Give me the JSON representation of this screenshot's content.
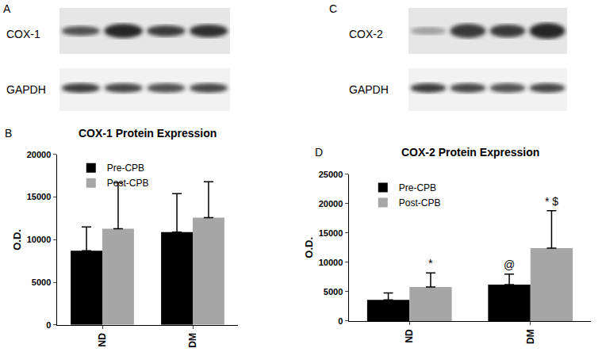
{
  "blots": [
    {
      "panel": "A",
      "labels": [
        "COX-1",
        "GAPDH"
      ]
    },
    {
      "panel": "C",
      "labels": [
        "COX-2",
        "GAPDH"
      ]
    }
  ],
  "chart_data": [
    {
      "type": "bar",
      "title": "COX-1 Protein Expression",
      "annotations": [
        {
          "text": "B"
        }
      ],
      "y_label": "O.D.",
      "categories": [
        "ND",
        "DM"
      ],
      "series": [
        {
          "name": "Pre-CPB",
          "color": "#000000",
          "values": [
            8700,
            10900
          ],
          "error": [
            2800,
            4500
          ]
        },
        {
          "name": "Post-CPB",
          "color": "#a6a6a6",
          "values": [
            11300,
            12600
          ],
          "error": [
            5400,
            4200
          ]
        }
      ],
      "ylim": [
        0,
        20000
      ],
      "yticks": [
        0,
        5000,
        10000,
        15000,
        20000
      ],
      "grid": false,
      "legend": "upper left"
    },
    {
      "type": "bar",
      "title": "COX-2 Protein Expression",
      "annotations": [
        {
          "text": "D"
        },
        {
          "text": "*",
          "category": "ND",
          "series": "Post-CPB"
        },
        {
          "text": "@",
          "category": "DM",
          "series": "Pre-CPB"
        },
        {
          "text": "* $",
          "category": "DM",
          "series": "Post-CPB"
        }
      ],
      "y_label": "O.D.",
      "categories": [
        "ND",
        "DM"
      ],
      "series": [
        {
          "name": "Pre-CPB",
          "color": "#000000",
          "values": [
            3600,
            6200
          ],
          "error": [
            1200,
            1800
          ]
        },
        {
          "name": "Post-CPB",
          "color": "#a6a6a6",
          "values": [
            5800,
            12400
          ],
          "error": [
            2400,
            6400
          ]
        }
      ],
      "ylim": [
        0,
        25000
      ],
      "yticks": [
        0,
        5000,
        10000,
        15000,
        20000,
        25000
      ],
      "grid": false,
      "legend": "upper left"
    }
  ]
}
